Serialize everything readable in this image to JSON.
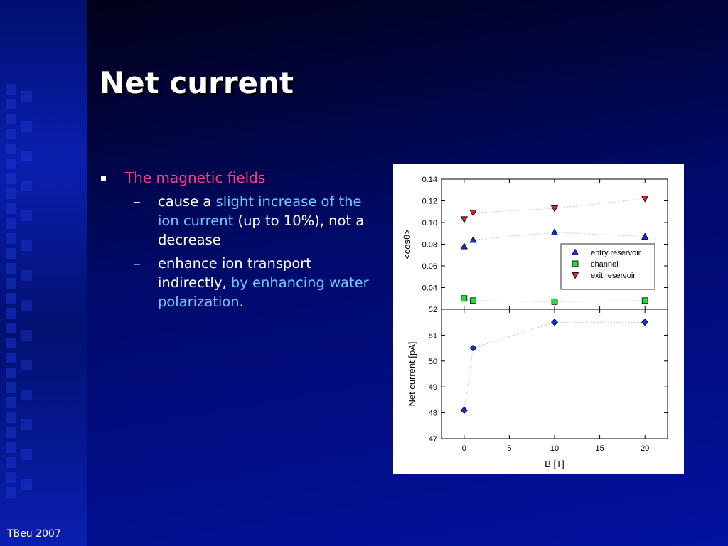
{
  "slide": {
    "title": "Net current",
    "footer": "TBeu 2007"
  },
  "bullets": {
    "main": "The magnetic fields",
    "sub1": {
      "t1": "cause a ",
      "t2": "slight increase of the ion current",
      "t3": " (up to 10%), not a decrease"
    },
    "sub2": {
      "t1": "enhance ion transport indirectly, ",
      "t2": "by enhancing water polarization",
      "t3": "."
    }
  },
  "chart_data": [
    {
      "type": "scatter",
      "xlabel": "",
      "ylabel": "<cosθ>",
      "xlim": [
        -2.5,
        22.5
      ],
      "ylim": [
        0.02,
        0.14
      ],
      "yticks": [
        "0.14",
        "0.12",
        "0.10",
        "0.08",
        "0.06",
        "0.04"
      ],
      "legend_position": "right",
      "series": [
        {
          "name": "entry reservoir",
          "marker": "triangle-up",
          "color": "#1530d8",
          "x": [
            0,
            1,
            10,
            20
          ],
          "y": [
            0.078,
            0.084,
            0.091,
            0.087
          ]
        },
        {
          "name": "channel",
          "marker": "square",
          "color": "#22dd33",
          "x": [
            0,
            1,
            10,
            20
          ],
          "y": [
            0.03,
            0.028,
            0.027,
            0.028
          ]
        },
        {
          "name": "exit reservoir",
          "marker": "triangle-down",
          "color": "#e02020",
          "x": [
            0,
            1,
            10,
            20
          ],
          "y": [
            0.103,
            0.109,
            0.113,
            0.122
          ]
        }
      ]
    },
    {
      "type": "scatter",
      "xlabel": "B [T]",
      "ylabel": "Net current [pA]",
      "xlim": [
        -2.5,
        22.5
      ],
      "ylim": [
        47,
        52
      ],
      "xticks": [
        "0",
        "5",
        "10",
        "15",
        "20"
      ],
      "yticks": [
        "52",
        "51",
        "50",
        "49",
        "48",
        "47"
      ],
      "series": [
        {
          "marker": "diamond",
          "color": "#1530d8",
          "x": [
            0,
            1,
            10,
            20
          ],
          "y": [
            48.1,
            50.5,
            51.5,
            51.5
          ]
        }
      ]
    }
  ]
}
